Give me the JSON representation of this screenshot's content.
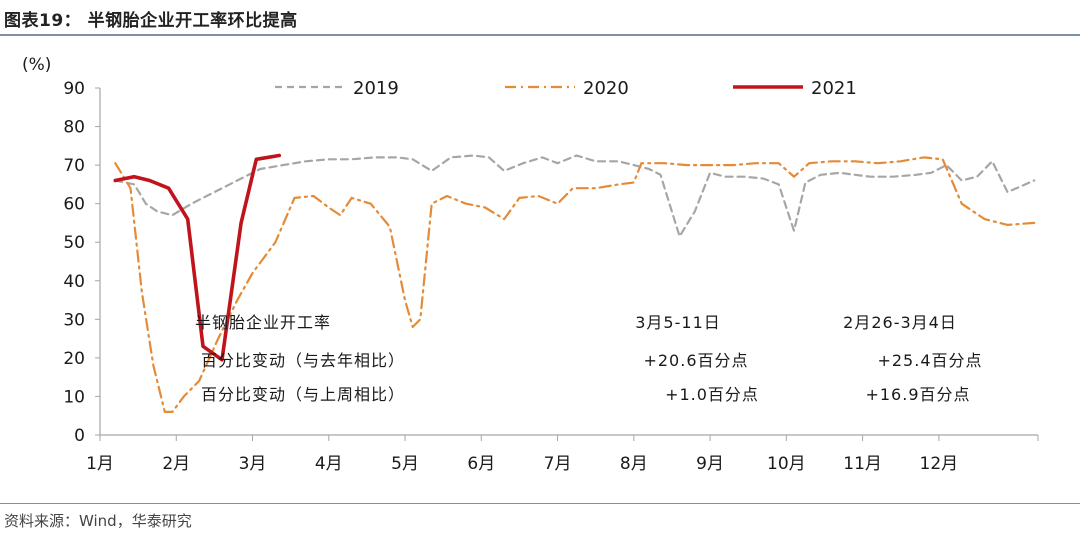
{
  "figure": {
    "title": "图表19：  半钢胎企业开工率环比提高",
    "source": "资料来源：Wind，华泰研究"
  },
  "chart_data": {
    "type": "line",
    "title": "",
    "ylabel": "(%)",
    "ylim": [
      0,
      90
    ],
    "yticks": [
      0,
      10,
      20,
      30,
      40,
      50,
      60,
      70,
      80,
      90
    ],
    "xlim": [
      1,
      13.3
    ],
    "xticks": [
      {
        "x": 1,
        "label": "1月"
      },
      {
        "x": 2,
        "label": "2月"
      },
      {
        "x": 3,
        "label": "3月"
      },
      {
        "x": 4,
        "label": "4月"
      },
      {
        "x": 5,
        "label": "5月"
      },
      {
        "x": 6,
        "label": "6月"
      },
      {
        "x": 7,
        "label": "7月"
      },
      {
        "x": 8,
        "label": "8月"
      },
      {
        "x": 9,
        "label": "9月"
      },
      {
        "x": 10,
        "label": "10月"
      },
      {
        "x": 11,
        "label": "11月"
      },
      {
        "x": 12,
        "label": "12月"
      }
    ],
    "grid": false,
    "legend_position": "top",
    "series": [
      {
        "name": "2019",
        "color": "#a6a6a6",
        "style": "dashed",
        "x": [
          1.2,
          1.45,
          1.6,
          1.75,
          1.95,
          2.2,
          2.5,
          2.8,
          3.1,
          3.4,
          3.7,
          4.0,
          4.3,
          4.6,
          4.9,
          5.1,
          5.35,
          5.6,
          5.9,
          6.1,
          6.3,
          6.55,
          6.8,
          7.0,
          7.25,
          7.5,
          7.8,
          8.0,
          8.2,
          8.35,
          8.6,
          8.8,
          9.0,
          9.2,
          9.45,
          9.7,
          9.9,
          10.1,
          10.25,
          10.45,
          10.7,
          10.9,
          11.1,
          11.4,
          11.7,
          11.9,
          12.1,
          12.3,
          12.5,
          12.7,
          12.9,
          13.25
        ],
        "y": [
          66,
          65,
          60,
          58,
          57,
          60,
          63,
          66,
          69,
          70,
          71,
          71.5,
          71.5,
          72,
          72,
          71.5,
          68.5,
          72,
          72.5,
          72,
          68.5,
          70.5,
          72,
          70.5,
          72.5,
          71,
          71,
          70,
          69,
          67.5,
          51.5,
          58,
          68,
          67,
          67,
          66.5,
          65,
          53,
          65.5,
          67.5,
          68,
          67.5,
          67,
          67,
          67.5,
          68,
          70,
          66,
          67,
          71,
          63,
          66
        ]
      },
      {
        "name": "2020",
        "color": "#e58a37",
        "style": "dashdot",
        "x": [
          1.2,
          1.4,
          1.55,
          1.7,
          1.85,
          1.95,
          2.1,
          2.3,
          2.55,
          2.8,
          3.0,
          3.3,
          3.55,
          3.8,
          4.0,
          4.15,
          4.3,
          4.55,
          4.8,
          5.0,
          5.1,
          5.2,
          5.35,
          5.55,
          5.8,
          6.05,
          6.3,
          6.5,
          6.75,
          7.0,
          7.2,
          7.5,
          7.8,
          8.0,
          8.1,
          8.4,
          8.7,
          9.0,
          9.3,
          9.6,
          9.9,
          10.1,
          10.3,
          10.6,
          10.9,
          11.2,
          11.5,
          11.8,
          12.05,
          12.3,
          12.6,
          12.9,
          13.25
        ],
        "y": [
          70.5,
          64,
          37,
          18,
          6,
          6,
          10,
          14,
          25,
          35,
          42,
          50,
          61.5,
          62,
          59,
          57,
          61.5,
          60,
          54,
          35,
          28,
          30,
          60,
          62,
          60,
          59,
          56,
          61.5,
          62,
          60,
          64,
          64,
          65,
          65.5,
          70.5,
          70.5,
          70,
          70,
          70,
          70.5,
          70.5,
          67,
          70.5,
          71,
          71,
          70.5,
          71,
          72,
          71.5,
          60,
          56,
          54.5,
          55
        ]
      },
      {
        "name": "2021",
        "color": "#c0141c",
        "style": "solid",
        "x": [
          1.2,
          1.45,
          1.65,
          1.9,
          2.15,
          2.35,
          2.6,
          2.85,
          3.05,
          3.35
        ],
        "y": [
          66,
          67,
          66,
          64,
          56,
          23,
          19.5,
          55,
          71.5,
          72.5
        ]
      }
    ],
    "annotations": {
      "row_labels": [
        "半钢胎企业开工率",
        "百分比变动（与去年相比）",
        "百分比变动（与上周相比）"
      ],
      "col1_header": "3月5-11日",
      "col1_values": [
        "+20.6百分点",
        "+1.0百分点"
      ],
      "col2_header": "2月26-3月4日",
      "col2_values": [
        "+25.4百分点",
        "+16.9百分点"
      ]
    },
    "colors": {
      "axis": "#a6a6a6",
      "text": "#1a1a1a",
      "rule": "#7f8fa6"
    }
  }
}
